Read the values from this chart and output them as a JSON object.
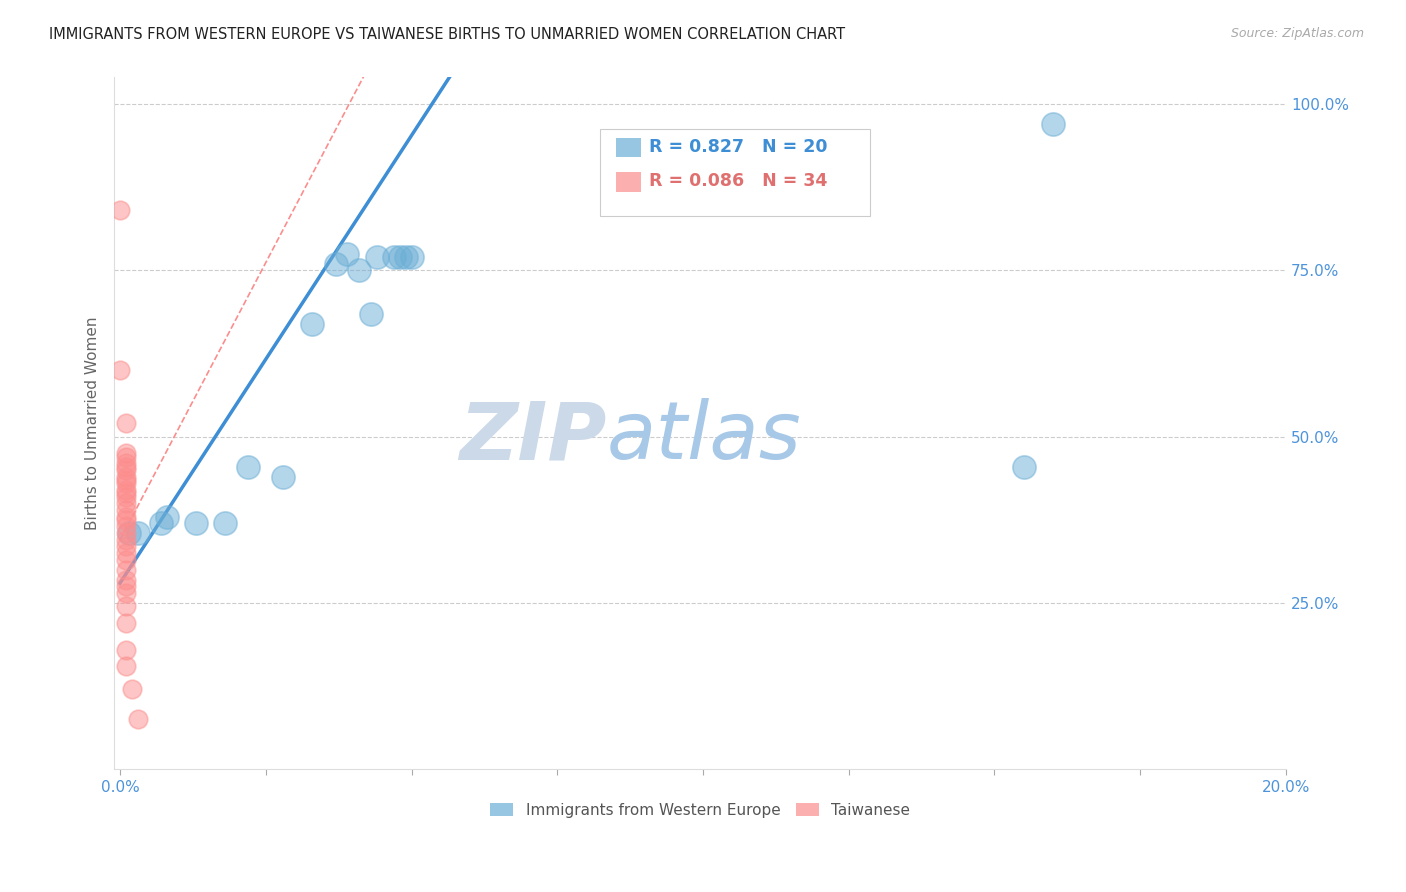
{
  "title": "IMMIGRANTS FROM WESTERN EUROPE VS TAIWANESE BIRTHS TO UNMARRIED WOMEN CORRELATION CHART",
  "source": "Source: ZipAtlas.com",
  "ylabel": "Births to Unmarried Women",
  "blue_R": 0.827,
  "blue_N": 20,
  "pink_R": 0.086,
  "pink_N": 34,
  "blue_color": "#6baed6",
  "pink_color": "#fc8d8d",
  "axis_color": "#4d94db",
  "watermark_color": "#cce0f5",
  "legend_blue_label": "Immigrants from Western Europe",
  "legend_pink_label": "Taiwanese",
  "xmin": 0.0,
  "xmax": 0.2,
  "ymin": 0.0,
  "ymax": 1.04,
  "blue_scatter": [
    [
      0.0015,
      0.355
    ],
    [
      0.003,
      0.355
    ],
    [
      0.007,
      0.37
    ],
    [
      0.008,
      0.38
    ],
    [
      0.013,
      0.37
    ],
    [
      0.018,
      0.37
    ],
    [
      0.022,
      0.455
    ],
    [
      0.028,
      0.44
    ],
    [
      0.033,
      0.67
    ],
    [
      0.037,
      0.76
    ],
    [
      0.039,
      0.775
    ],
    [
      0.041,
      0.75
    ],
    [
      0.043,
      0.685
    ],
    [
      0.044,
      0.77
    ],
    [
      0.047,
      0.77
    ],
    [
      0.048,
      0.77
    ],
    [
      0.049,
      0.77
    ],
    [
      0.05,
      0.77
    ],
    [
      0.16,
      0.97
    ],
    [
      0.155,
      0.455
    ]
  ],
  "pink_scatter": [
    [
      0.0,
      0.84
    ],
    [
      0.0,
      0.6
    ],
    [
      0.001,
      0.52
    ],
    [
      0.001,
      0.475
    ],
    [
      0.001,
      0.47
    ],
    [
      0.001,
      0.46
    ],
    [
      0.001,
      0.455
    ],
    [
      0.001,
      0.45
    ],
    [
      0.001,
      0.44
    ],
    [
      0.001,
      0.435
    ],
    [
      0.001,
      0.43
    ],
    [
      0.001,
      0.42
    ],
    [
      0.001,
      0.415
    ],
    [
      0.001,
      0.41
    ],
    [
      0.001,
      0.4
    ],
    [
      0.001,
      0.39
    ],
    [
      0.001,
      0.38
    ],
    [
      0.001,
      0.375
    ],
    [
      0.001,
      0.365
    ],
    [
      0.001,
      0.355
    ],
    [
      0.001,
      0.345
    ],
    [
      0.001,
      0.335
    ],
    [
      0.001,
      0.325
    ],
    [
      0.001,
      0.315
    ],
    [
      0.001,
      0.3
    ],
    [
      0.001,
      0.285
    ],
    [
      0.001,
      0.275
    ],
    [
      0.001,
      0.265
    ],
    [
      0.001,
      0.245
    ],
    [
      0.001,
      0.22
    ],
    [
      0.001,
      0.18
    ],
    [
      0.001,
      0.155
    ],
    [
      0.002,
      0.12
    ],
    [
      0.003,
      0.075
    ]
  ],
  "blue_line_x0": 0.0,
  "blue_line_y0": 0.28,
  "blue_line_x1": 0.055,
  "blue_line_y1": 1.02,
  "pink_line_x0": 0.0,
  "pink_line_y0": 0.345,
  "pink_line_x1": 0.003,
  "pink_line_y1": 0.395
}
